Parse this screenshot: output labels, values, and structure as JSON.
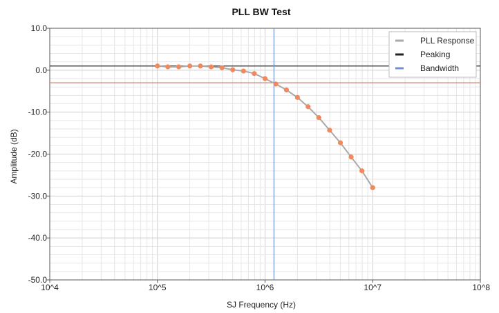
{
  "chart_data": {
    "type": "line",
    "title": "PLL BW Test",
    "xlabel": "SJ Frequency (Hz)",
    "ylabel": "Amplitude (dB)",
    "x_scale": "log",
    "xlim": [
      10000,
      100000000
    ],
    "ylim": [
      -50,
      10
    ],
    "x_ticks": [
      {
        "value": 10000,
        "label": "10^4"
      },
      {
        "value": 100000,
        "label": "10^5"
      },
      {
        "value": 1000000,
        "label": "10^6"
      },
      {
        "value": 10000000,
        "label": "10^7"
      },
      {
        "value": 100000000,
        "label": "10^8"
      }
    ],
    "y_ticks": [
      {
        "value": 10,
        "label": "10.0"
      },
      {
        "value": 0,
        "label": "0.0"
      },
      {
        "value": -10,
        "label": "-10.0"
      },
      {
        "value": -20,
        "label": "-20.0"
      },
      {
        "value": -30,
        "label": "-30.0"
      },
      {
        "value": -40,
        "label": "-40.0"
      },
      {
        "value": -50,
        "label": "-50.0"
      }
    ],
    "grid": true,
    "legend_position": "top-right",
    "series": [
      {
        "name": "PLL Response",
        "color": "#a9a9a9",
        "marker_color": "#f08a5d",
        "points": [
          {
            "x": 100000,
            "y": 1.0
          },
          {
            "x": 125000,
            "y": 0.8
          },
          {
            "x": 158000,
            "y": 0.8
          },
          {
            "x": 200000,
            "y": 1.0
          },
          {
            "x": 251000,
            "y": 1.0
          },
          {
            "x": 316000,
            "y": 0.8
          },
          {
            "x": 398000,
            "y": 0.6
          },
          {
            "x": 501000,
            "y": 0.1
          },
          {
            "x": 631000,
            "y": -0.2
          },
          {
            "x": 794000,
            "y": -0.8
          },
          {
            "x": 1000000,
            "y": -2.0
          },
          {
            "x": 1260000,
            "y": -3.3
          },
          {
            "x": 1580000,
            "y": -4.7
          },
          {
            "x": 2000000,
            "y": -6.5
          },
          {
            "x": 2510000,
            "y": -8.7
          },
          {
            "x": 3160000,
            "y": -11.3
          },
          {
            "x": 3980000,
            "y": -14.3
          },
          {
            "x": 5010000,
            "y": -17.3
          },
          {
            "x": 6310000,
            "y": -20.7
          },
          {
            "x": 7940000,
            "y": -24.0
          },
          {
            "x": 10000000,
            "y": -28.0
          }
        ]
      },
      {
        "name": "Peaking",
        "color": "#222222",
        "y": 1.0
      },
      {
        "name": "Bandwidth",
        "color": "#6f8fd6",
        "x": 1210000
      }
    ],
    "reference_line": {
      "y": -3.0,
      "color": "#c97a6a"
    }
  }
}
